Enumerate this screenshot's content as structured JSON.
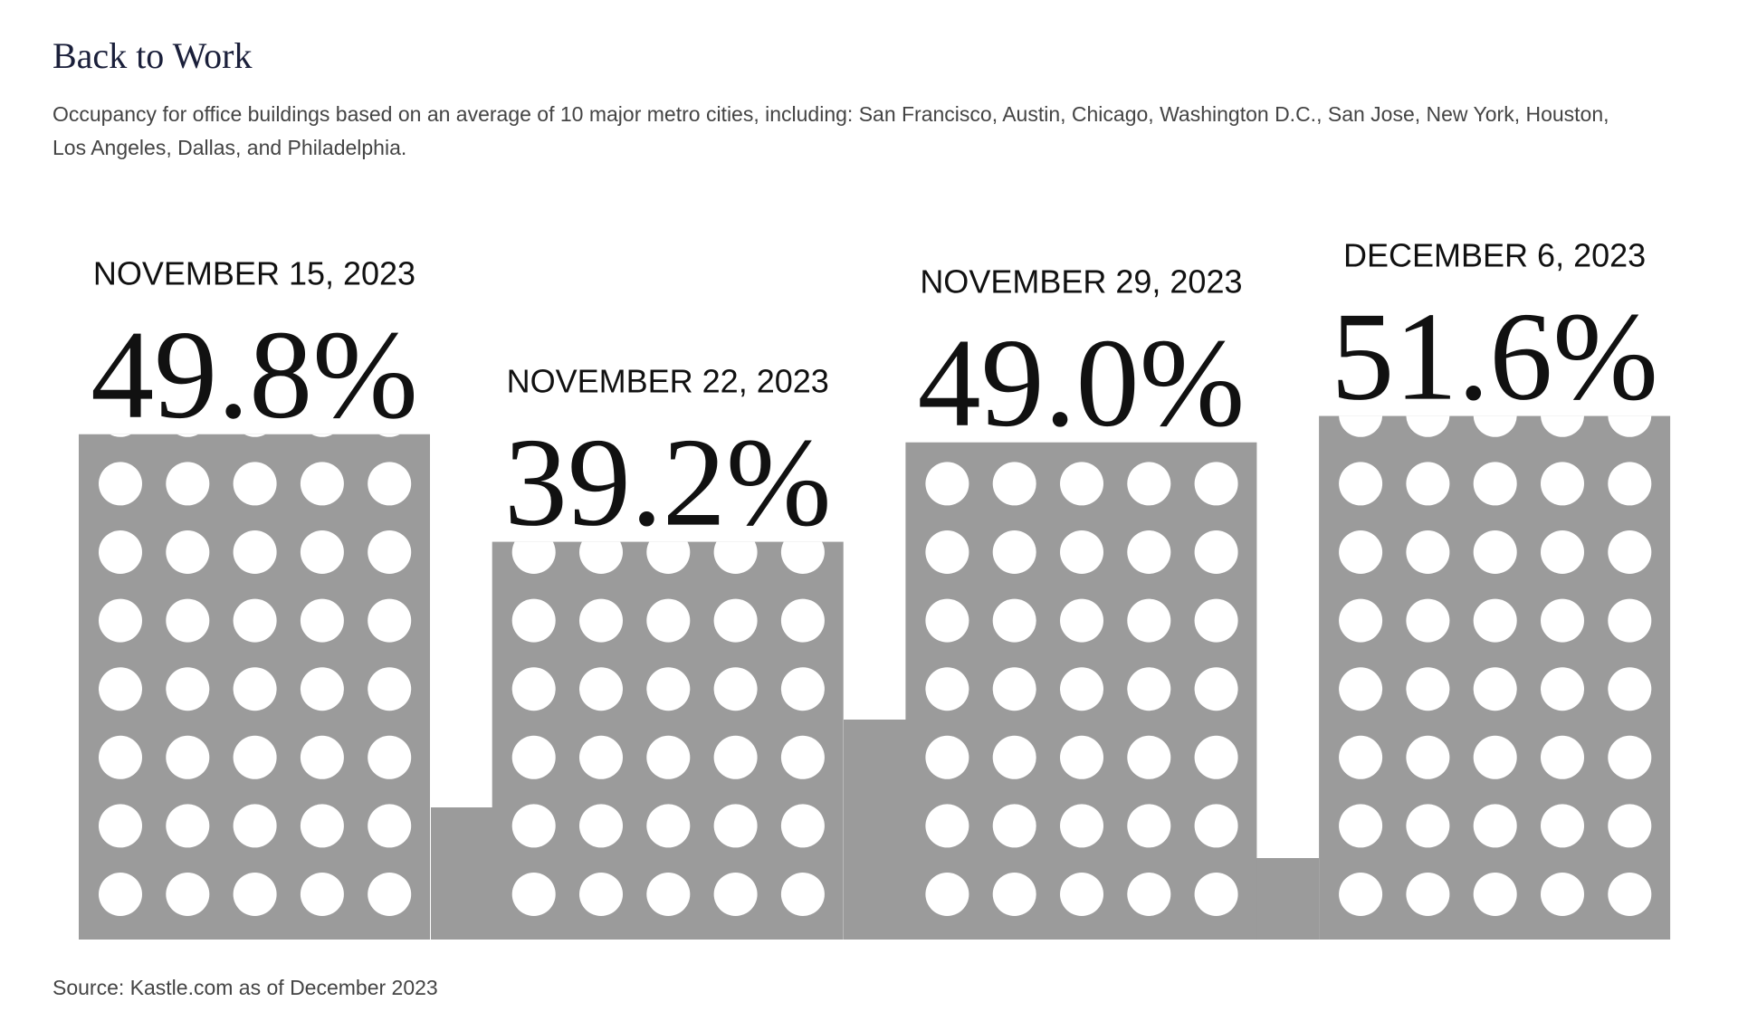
{
  "chart_data": {
    "type": "bar",
    "title": "Back to Work",
    "subtitle": "Occupancy for office buildings based on an average of 10 major metro cities, including: San Francisco, Austin, Chicago, Washington D.C., San Jose, New York, Houston, Los Angeles, Dallas, and Philadelphia.",
    "source": "Source: Kastle.com as of December 2023",
    "categories": [
      "NOVEMBER 15, 2023",
      "NOVEMBER 22, 2023",
      "NOVEMBER 29, 2023",
      "DECEMBER 6, 2023"
    ],
    "values": [
      49.8,
      39.2,
      49.0,
      51.6
    ],
    "value_labels": [
      "49.8%",
      "39.2%",
      "49.0%",
      "51.6%"
    ],
    "color": "#9b9b9b"
  }
}
